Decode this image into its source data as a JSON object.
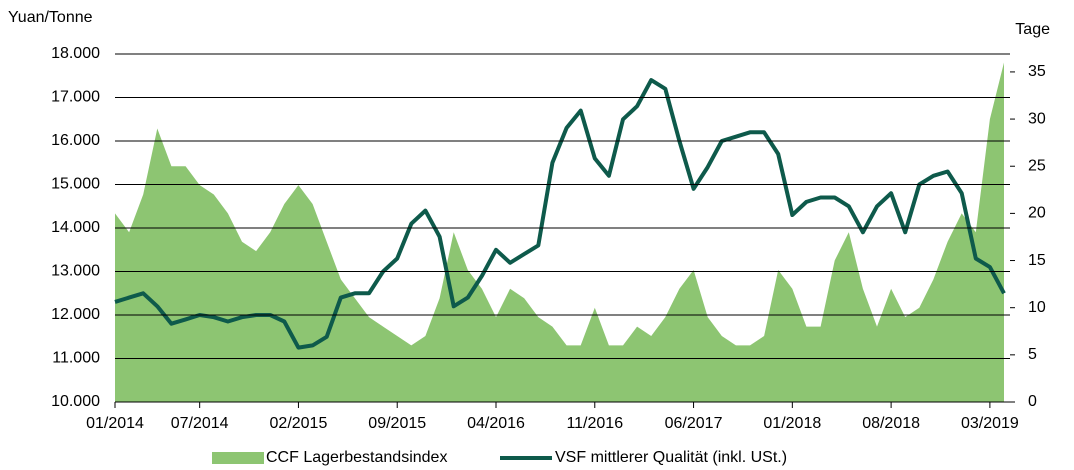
{
  "chart_data": {
    "type": "line",
    "y_label": "Yuan/Tonne",
    "y2_label": "Tage",
    "categories": [
      "01/2014",
      "02/2014",
      "03/2014",
      "04/2014",
      "05/2014",
      "06/2014",
      "07/2014",
      "08/2014",
      "09/2014",
      "10/2014",
      "11/2014",
      "12/2014",
      "01/2015",
      "02/2015",
      "03/2015",
      "04/2015",
      "05/2015",
      "06/2015",
      "07/2015",
      "08/2015",
      "09/2015",
      "10/2015",
      "11/2015",
      "12/2015",
      "01/2016",
      "02/2016",
      "03/2016",
      "04/2016",
      "05/2016",
      "06/2016",
      "07/2016",
      "08/2016",
      "09/2016",
      "10/2016",
      "11/2016",
      "12/2016",
      "01/2017",
      "02/2017",
      "03/2017",
      "04/2017",
      "05/2017",
      "06/2017",
      "07/2017",
      "08/2017",
      "09/2017",
      "10/2017",
      "11/2017",
      "12/2017",
      "01/2018",
      "02/2018",
      "03/2018",
      "04/2018",
      "05/2018",
      "06/2018",
      "07/2018",
      "08/2018",
      "09/2018",
      "10/2018",
      "11/2018",
      "12/2018",
      "01/2019",
      "02/2019",
      "03/2019",
      "04/2019"
    ],
    "xticks": [
      "01/2014",
      "07/2014",
      "02/2015",
      "09/2015",
      "04/2016",
      "11/2016",
      "06/2017",
      "01/2018",
      "08/2018",
      "03/2019"
    ],
    "series": [
      {
        "name": "CCF Lagerbestandsindex",
        "type": "area",
        "axis": "y2",
        "color": "#8dc572",
        "values": [
          20,
          18,
          22,
          29,
          25,
          25,
          23,
          22,
          20,
          17,
          16,
          18,
          21,
          23,
          21,
          17,
          13,
          11,
          9,
          8,
          7,
          6,
          7,
          11,
          18,
          14,
          12,
          9,
          12,
          11,
          9,
          8,
          6,
          6,
          10,
          6,
          6,
          8,
          7,
          9,
          12,
          14,
          9,
          7,
          6,
          6,
          7,
          14,
          12,
          8,
          8,
          15,
          18,
          12,
          8,
          12,
          9,
          10,
          13,
          17,
          20,
          18,
          30,
          36
        ]
      },
      {
        "name": "VSF mittlerer Qualität (inkl. USt.)",
        "type": "line",
        "axis": "y",
        "color": "#0e5a4b",
        "values": [
          12300,
          12400,
          12500,
          12200,
          11800,
          11900,
          12000,
          11950,
          11850,
          11950,
          12000,
          12000,
          11850,
          11250,
          11300,
          11500,
          12400,
          12500,
          12500,
          13000,
          13300,
          14100,
          14400,
          13800,
          12200,
          12400,
          12900,
          13500,
          13200,
          13400,
          13600,
          15500,
          16300,
          16700,
          15600,
          15200,
          16500,
          16800,
          17400,
          17200,
          16000,
          14900,
          15400,
          16000,
          16100,
          16200,
          16200,
          15700,
          14300,
          14600,
          14700,
          14700,
          14500,
          13900,
          14500,
          14800,
          13900,
          15000,
          15200,
          15300,
          14800,
          13300,
          13100,
          12500
        ]
      }
    ],
    "ylim": [
      10000,
      18000
    ],
    "yticks": [
      {
        "value": 10000,
        "label": "10.000"
      },
      {
        "value": 11000,
        "label": "11.000"
      },
      {
        "value": 12000,
        "label": "12.000"
      },
      {
        "value": 13000,
        "label": "13.000"
      },
      {
        "value": 14000,
        "label": "14.000"
      },
      {
        "value": 15000,
        "label": "15.000"
      },
      {
        "value": 16000,
        "label": "16.000"
      },
      {
        "value": 17000,
        "label": "17.000"
      },
      {
        "value": 18000,
        "label": "18.000"
      }
    ],
    "y2lim": [
      0,
      36.9
    ],
    "y2ticks": [
      0,
      5,
      10,
      15,
      20,
      25,
      30,
      35
    ],
    "grid": true
  }
}
